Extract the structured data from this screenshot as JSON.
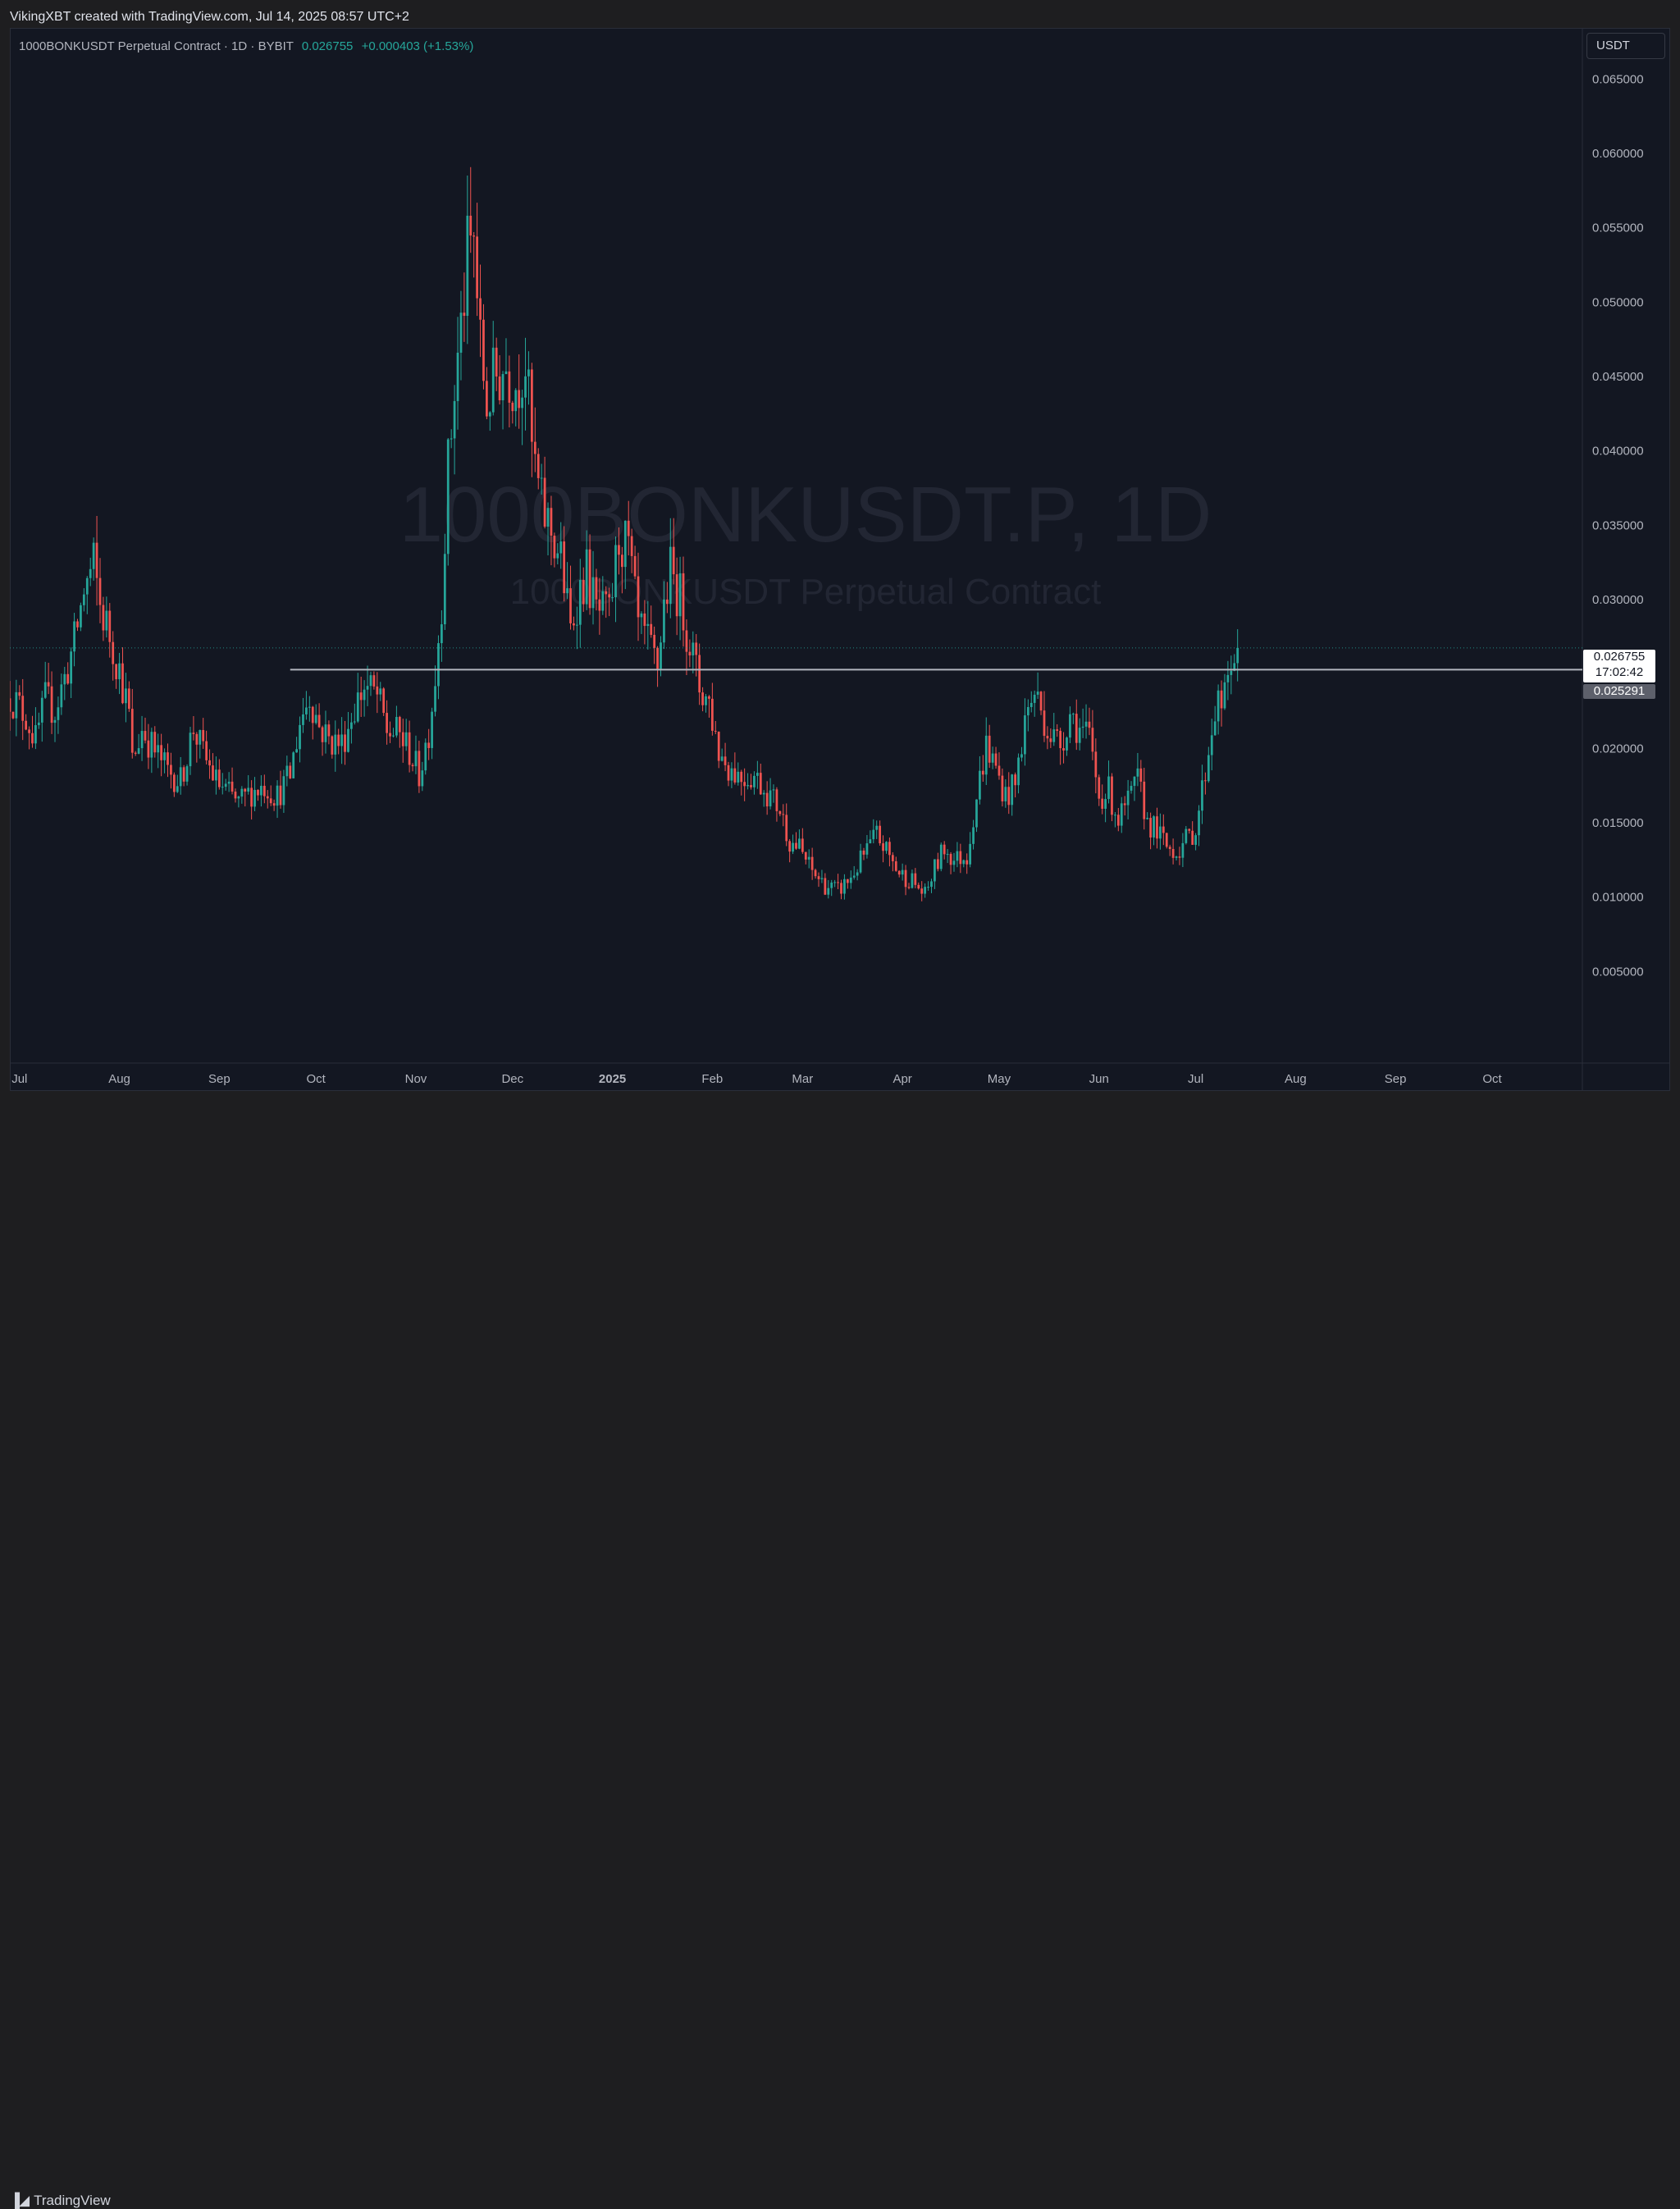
{
  "credit": "VikingXBT created with TradingView.com, Jul 14, 2025 08:57 UTC+2",
  "legend": {
    "symbol": "1000BONKUSDT Perpetual Contract",
    "interval": "1D",
    "exchange": "BYBIT",
    "price": "0.026755",
    "change": "+0.000403 (+1.53%)"
  },
  "unit_button": "USDT",
  "watermark": {
    "line1": "1000BONKUSDT.P, 1D",
    "line2": "1000BONKUSDT Perpetual Contract"
  },
  "price_labels": {
    "current_price": "0.026755",
    "countdown": "17:02:42",
    "line_price": "0.025291"
  },
  "footer_brand": "TradingView",
  "colors": {
    "up": "#26a69a",
    "down": "#ef5350",
    "background": "#131722",
    "horizontal_line": "#b2b5be"
  },
  "chart_data": {
    "type": "candlestick",
    "symbol": "1000BONKUSDT.P",
    "interval": "1D",
    "y_axis_ticks": [
      "0.065000",
      "0.060000",
      "0.055000",
      "0.050000",
      "0.045000",
      "0.040000",
      "0.035000",
      "0.030000",
      "0.020000",
      "0.015000",
      "0.010000",
      "0.005000"
    ],
    "y_tick_values": [
      0.065,
      0.06,
      0.055,
      0.05,
      0.045,
      0.04,
      0.035,
      0.03,
      0.02,
      0.015,
      0.01,
      0.005
    ],
    "ylim": [
      -0.00116,
      0.06844
    ],
    "x_axis_ticks": [
      {
        "label": "Jul",
        "date": "2024-07-01"
      },
      {
        "label": "Aug",
        "date": "2024-08-01"
      },
      {
        "label": "Sep",
        "date": "2024-09-01"
      },
      {
        "label": "Oct",
        "date": "2024-10-01"
      },
      {
        "label": "Nov",
        "date": "2024-11-01"
      },
      {
        "label": "Dec",
        "date": "2024-12-01"
      },
      {
        "label": "2025",
        "date": "2025-01-01",
        "bold": true
      },
      {
        "label": "Feb",
        "date": "2025-02-01"
      },
      {
        "label": "Mar",
        "date": "2025-03-01"
      },
      {
        "label": "Apr",
        "date": "2025-04-01"
      },
      {
        "label": "May",
        "date": "2025-05-01"
      },
      {
        "label": "Jun",
        "date": "2025-06-01"
      },
      {
        "label": "Jul",
        "date": "2025-07-01"
      },
      {
        "label": "Aug",
        "date": "2025-08-01"
      },
      {
        "label": "Sep",
        "date": "2025-09-01"
      },
      {
        "label": "Oct",
        "date": "2025-10-01"
      }
    ],
    "xlim": [
      "2024-06-28",
      "2025-10-29"
    ],
    "horizontal_line": {
      "value": 0.025291,
      "from_date": "2024-09-23"
    },
    "last_price": 0.026755,
    "closes": [
      {
        "date": "2024-06-28",
        "close": 0.0236
      },
      {
        "date": "2024-07-03",
        "close": 0.0222
      },
      {
        "date": "2024-07-06",
        "close": 0.0205
      },
      {
        "date": "2024-07-09",
        "close": 0.0232
      },
      {
        "date": "2024-07-12",
        "close": 0.0226
      },
      {
        "date": "2024-07-15",
        "close": 0.0247
      },
      {
        "date": "2024-07-18",
        "close": 0.0271
      },
      {
        "date": "2024-07-21",
        "close": 0.0306
      },
      {
        "date": "2024-07-24",
        "close": 0.0323
      },
      {
        "date": "2024-07-26",
        "close": 0.0296
      },
      {
        "date": "2024-07-29",
        "close": 0.0276
      },
      {
        "date": "2024-08-01",
        "close": 0.0253
      },
      {
        "date": "2024-08-04",
        "close": 0.0222
      },
      {
        "date": "2024-08-05",
        "close": 0.0191
      },
      {
        "date": "2024-08-08",
        "close": 0.0213
      },
      {
        "date": "2024-08-12",
        "close": 0.0198
      },
      {
        "date": "2024-08-16",
        "close": 0.0185
      },
      {
        "date": "2024-08-20",
        "close": 0.0178
      },
      {
        "date": "2024-08-24",
        "close": 0.0214
      },
      {
        "date": "2024-08-27",
        "close": 0.0196
      },
      {
        "date": "2024-08-31",
        "close": 0.0178
      },
      {
        "date": "2024-09-04",
        "close": 0.0169
      },
      {
        "date": "2024-09-07",
        "close": 0.0163
      },
      {
        "date": "2024-09-11",
        "close": 0.0171
      },
      {
        "date": "2024-09-15",
        "close": 0.0175
      },
      {
        "date": "2024-09-19",
        "close": 0.0168
      },
      {
        "date": "2024-09-23",
        "close": 0.0182
      },
      {
        "date": "2024-09-26",
        "close": 0.0218
      },
      {
        "date": "2024-09-29",
        "close": 0.0236
      },
      {
        "date": "2024-10-02",
        "close": 0.0215
      },
      {
        "date": "2024-10-05",
        "close": 0.0206
      },
      {
        "date": "2024-10-09",
        "close": 0.0203
      },
      {
        "date": "2024-10-13",
        "close": 0.0228
      },
      {
        "date": "2024-10-16",
        "close": 0.0242
      },
      {
        "date": "2024-10-20",
        "close": 0.0235
      },
      {
        "date": "2024-10-23",
        "close": 0.0212
      },
      {
        "date": "2024-10-27",
        "close": 0.0209
      },
      {
        "date": "2024-10-30",
        "close": 0.0198
      },
      {
        "date": "2024-11-02",
        "close": 0.0182
      },
      {
        "date": "2024-11-05",
        "close": 0.0212
      },
      {
        "date": "2024-11-07",
        "close": 0.0249
      },
      {
        "date": "2024-11-09",
        "close": 0.0301
      },
      {
        "date": "2024-11-11",
        "close": 0.0388
      },
      {
        "date": "2024-11-13",
        "close": 0.0441
      },
      {
        "date": "2024-11-15",
        "close": 0.0482
      },
      {
        "date": "2024-11-17",
        "close": 0.0529
      },
      {
        "date": "2024-11-19",
        "close": 0.0542
      },
      {
        "date": "2024-11-21",
        "close": 0.0468
      },
      {
        "date": "2024-11-23",
        "close": 0.0432
      },
      {
        "date": "2024-11-26",
        "close": 0.0451
      },
      {
        "date": "2024-11-29",
        "close": 0.0458
      },
      {
        "date": "2024-12-02",
        "close": 0.0446
      },
      {
        "date": "2024-12-05",
        "close": 0.0461
      },
      {
        "date": "2024-12-07",
        "close": 0.0401
      },
      {
        "date": "2024-12-10",
        "close": 0.0362
      },
      {
        "date": "2024-12-13",
        "close": 0.0346
      },
      {
        "date": "2024-12-16",
        "close": 0.0327
      },
      {
        "date": "2024-12-19",
        "close": 0.0279
      },
      {
        "date": "2024-12-21",
        "close": 0.0301
      },
      {
        "date": "2024-12-24",
        "close": 0.0318
      },
      {
        "date": "2024-12-27",
        "close": 0.0292
      },
      {
        "date": "2024-12-31",
        "close": 0.0288
      },
      {
        "date": "2025-01-03",
        "close": 0.0341
      },
      {
        "date": "2025-01-06",
        "close": 0.0333
      },
      {
        "date": "2025-01-09",
        "close": 0.0281
      },
      {
        "date": "2025-01-12",
        "close": 0.0269
      },
      {
        "date": "2025-01-15",
        "close": 0.0256
      },
      {
        "date": "2025-01-17",
        "close": 0.0296
      },
      {
        "date": "2025-01-19",
        "close": 0.0319
      },
      {
        "date": "2025-01-22",
        "close": 0.0301
      },
      {
        "date": "2025-01-25",
        "close": 0.0272
      },
      {
        "date": "2025-01-28",
        "close": 0.0241
      },
      {
        "date": "2025-01-31",
        "close": 0.0231
      },
      {
        "date": "2025-02-03",
        "close": 0.0198
      },
      {
        "date": "2025-02-06",
        "close": 0.0188
      },
      {
        "date": "2025-02-10",
        "close": 0.0181
      },
      {
        "date": "2025-02-14",
        "close": 0.0182
      },
      {
        "date": "2025-02-18",
        "close": 0.0171
      },
      {
        "date": "2025-02-22",
        "close": 0.0159
      },
      {
        "date": "2025-02-25",
        "close": 0.0138
      },
      {
        "date": "2025-02-28",
        "close": 0.0133
      },
      {
        "date": "2025-03-04",
        "close": 0.0117
      },
      {
        "date": "2025-03-08",
        "close": 0.0108
      },
      {
        "date": "2025-03-12",
        "close": 0.0104
      },
      {
        "date": "2025-03-16",
        "close": 0.0113
      },
      {
        "date": "2025-03-20",
        "close": 0.0128
      },
      {
        "date": "2025-03-24",
        "close": 0.0142
      },
      {
        "date": "2025-03-27",
        "close": 0.0131
      },
      {
        "date": "2025-03-31",
        "close": 0.0116
      },
      {
        "date": "2025-04-04",
        "close": 0.0111
      },
      {
        "date": "2025-04-08",
        "close": 0.0101
      },
      {
        "date": "2025-04-11",
        "close": 0.0119
      },
      {
        "date": "2025-04-14",
        "close": 0.0133
      },
      {
        "date": "2025-04-17",
        "close": 0.0125
      },
      {
        "date": "2025-04-21",
        "close": 0.0128
      },
      {
        "date": "2025-04-24",
        "close": 0.0168
      },
      {
        "date": "2025-04-27",
        "close": 0.0202
      },
      {
        "date": "2025-04-30",
        "close": 0.0186
      },
      {
        "date": "2025-05-03",
        "close": 0.0168
      },
      {
        "date": "2025-05-06",
        "close": 0.0175
      },
      {
        "date": "2025-05-09",
        "close": 0.0219
      },
      {
        "date": "2025-05-12",
        "close": 0.0238
      },
      {
        "date": "2025-05-14",
        "close": 0.0226
      },
      {
        "date": "2025-05-17",
        "close": 0.0209
      },
      {
        "date": "2025-05-20",
        "close": 0.0203
      },
      {
        "date": "2025-05-23",
        "close": 0.0224
      },
      {
        "date": "2025-05-26",
        "close": 0.0213
      },
      {
        "date": "2025-05-29",
        "close": 0.0206
      },
      {
        "date": "2025-06-01",
        "close": 0.0168
      },
      {
        "date": "2025-06-04",
        "close": 0.0171
      },
      {
        "date": "2025-06-07",
        "close": 0.0152
      },
      {
        "date": "2025-06-10",
        "close": 0.0163
      },
      {
        "date": "2025-06-13",
        "close": 0.0178
      },
      {
        "date": "2025-06-16",
        "close": 0.0151
      },
      {
        "date": "2025-06-19",
        "close": 0.0144
      },
      {
        "date": "2025-06-22",
        "close": 0.0134
      },
      {
        "date": "2025-06-25",
        "close": 0.0131
      },
      {
        "date": "2025-06-28",
        "close": 0.0138
      },
      {
        "date": "2025-07-01",
        "close": 0.0146
      },
      {
        "date": "2025-07-04",
        "close": 0.0185
      },
      {
        "date": "2025-07-07",
        "close": 0.0228
      },
      {
        "date": "2025-07-10",
        "close": 0.0232
      },
      {
        "date": "2025-07-12",
        "close": 0.0258
      },
      {
        "date": "2025-07-14",
        "close": 0.026755
      }
    ]
  }
}
